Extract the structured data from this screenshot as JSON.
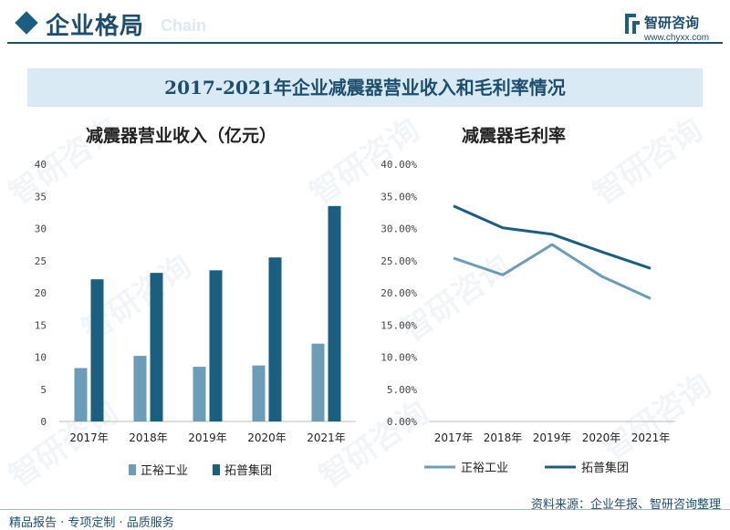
{
  "header": {
    "title": "企业格局",
    "ghost_text": "Chain",
    "logo_name": "智研咨询",
    "logo_url": "www.chyxx.com"
  },
  "banner": {
    "title": "2017-2021年企业减震器营业收入和毛利率情况"
  },
  "watermark": "智研咨询",
  "colors": {
    "primary": "#1a5e80",
    "secondary": "#6b9db8",
    "banner_bg": "#d9eaf5"
  },
  "chart_data": [
    {
      "type": "bar",
      "title": "减震器营业收入（亿元）",
      "categories": [
        "2017年",
        "2018年",
        "2019年",
        "2020年",
        "2021年"
      ],
      "series": [
        {
          "name": "正裕工业",
          "values": [
            8.3,
            10.2,
            8.5,
            8.7,
            12.1
          ]
        },
        {
          "name": "拓普集团",
          "values": [
            22.1,
            23.1,
            23.5,
            25.5,
            33.5
          ]
        }
      ],
      "ylim": [
        0,
        40
      ],
      "yticks": [
        "0",
        "5",
        "10",
        "15",
        "20",
        "25",
        "30",
        "35",
        "40"
      ],
      "ytick_values": [
        0,
        5,
        10,
        15,
        20,
        25,
        30,
        35,
        40
      ]
    },
    {
      "type": "line",
      "title": "减震器毛利率",
      "categories": [
        "2017年",
        "2018年",
        "2019年",
        "2020年",
        "2021年"
      ],
      "series": [
        {
          "name": "正裕工业",
          "values": [
            25.4,
            22.8,
            27.5,
            22.6,
            19.1
          ]
        },
        {
          "name": "拓普集团",
          "values": [
            33.5,
            30.1,
            29.1,
            26.4,
            23.8
          ]
        }
      ],
      "ylim": [
        0,
        40
      ],
      "yticks": [
        "0.00%",
        "5.00%",
        "10.00%",
        "15.00%",
        "20.00%",
        "25.00%",
        "30.00%",
        "35.00%",
        "40.00%"
      ],
      "ytick_values": [
        0,
        5,
        10,
        15,
        20,
        25,
        30,
        35,
        40
      ]
    }
  ],
  "footer": {
    "left": "精品报告 · 专项定制 · 品质服务",
    "right": "资料来源：企业年报、智研咨询整理"
  }
}
